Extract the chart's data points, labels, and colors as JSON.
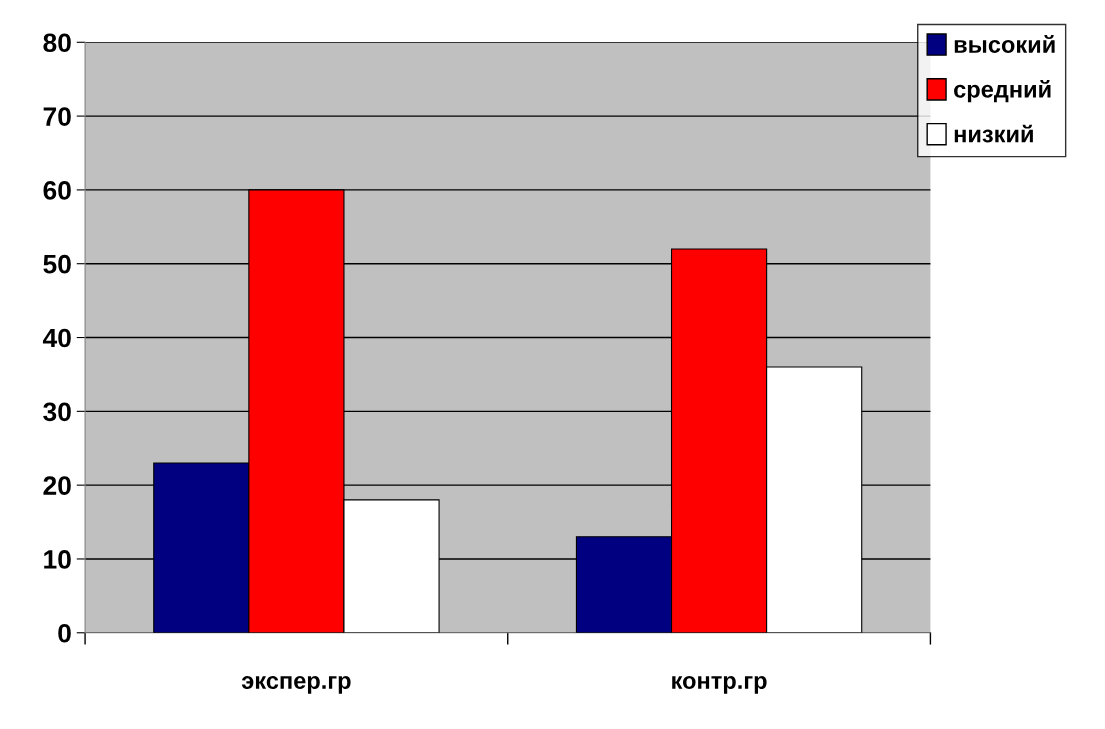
{
  "chart_data": {
    "type": "bar",
    "categories": [
      "экспер.гр",
      "контр.гр"
    ],
    "series": [
      {
        "name": "высокий",
        "color": "#000080",
        "values": [
          23,
          13
        ]
      },
      {
        "name": "средний",
        "color": "#ff0000",
        "values": [
          60,
          52
        ]
      },
      {
        "name": "низкий",
        "color": "#ffffff",
        "values": [
          18,
          36
        ]
      }
    ],
    "ylim": [
      0,
      80
    ],
    "yticks": [
      0,
      10,
      20,
      30,
      40,
      50,
      60,
      70,
      80
    ],
    "grid": "y",
    "legend": "top right"
  }
}
